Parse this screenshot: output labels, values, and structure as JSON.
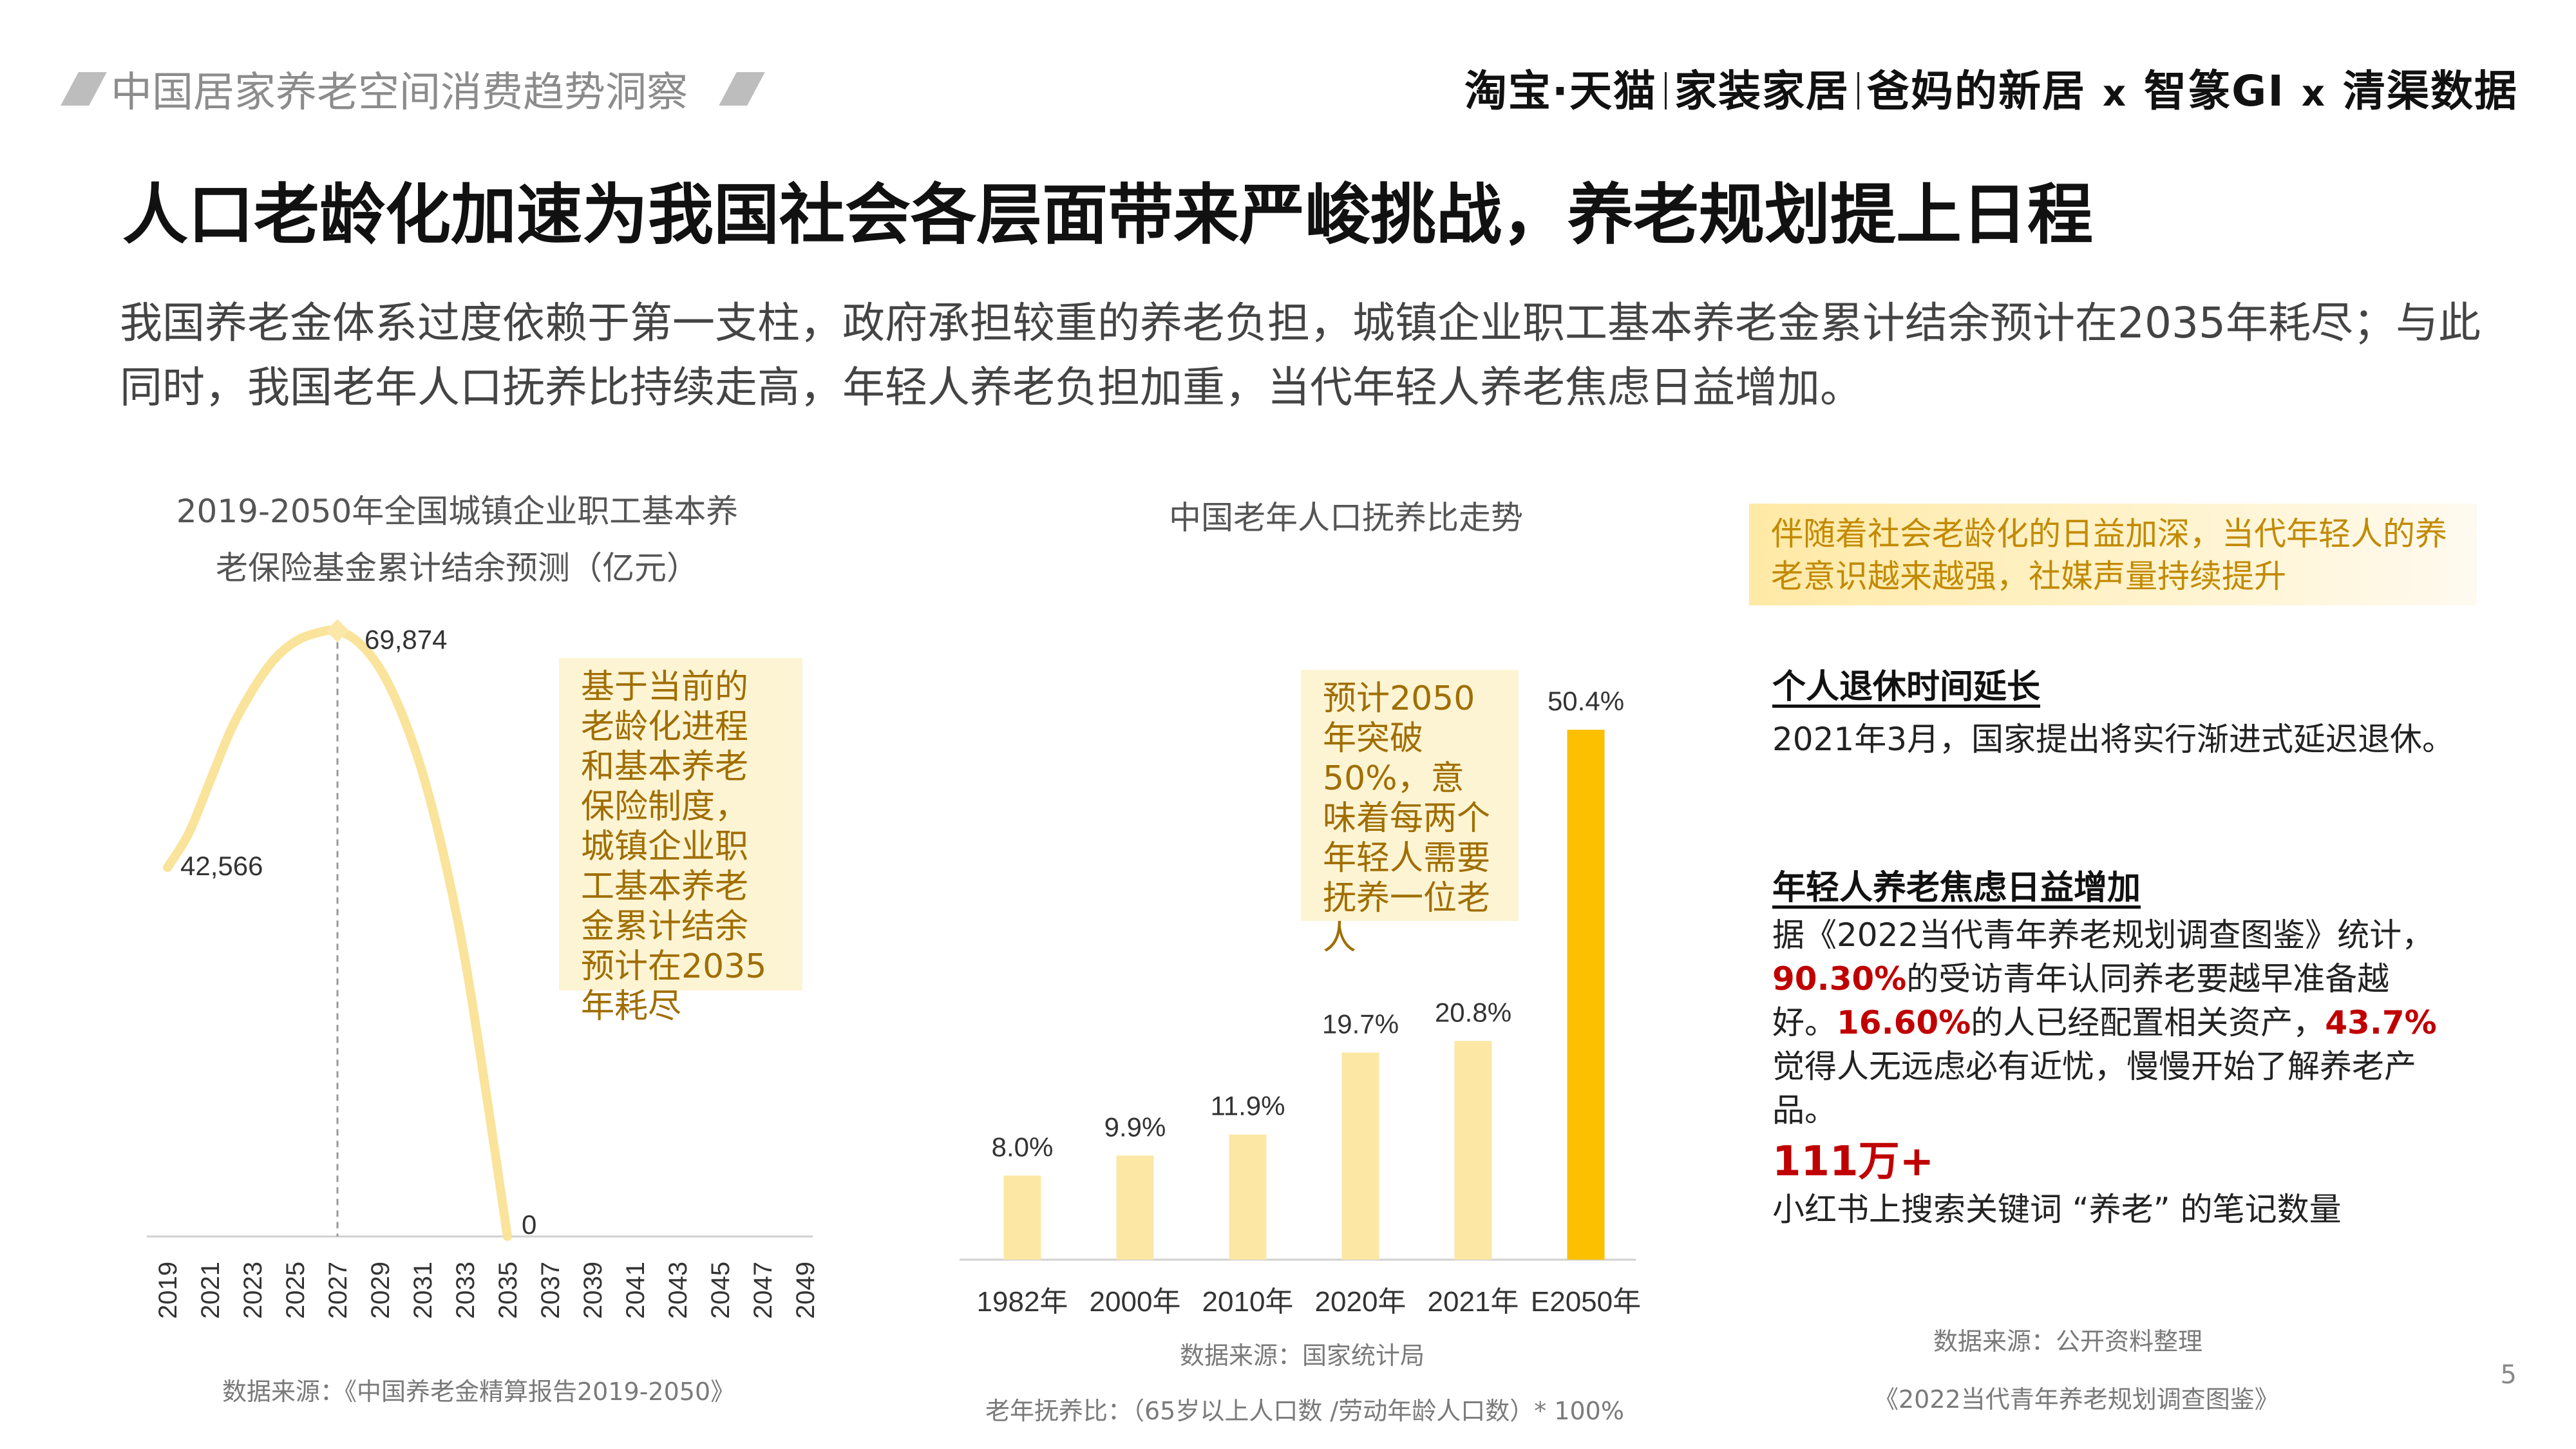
{
  "header": {
    "title": "中国居家养老空间消费趋势洞察",
    "brand_taobao": "淘宝·天猫",
    "brand_home": "家装家居",
    "brand_parents": "爸妈的新居",
    "brand_x": "x",
    "brand_gi": "智篆GI",
    "brand_qingqu": "清渠数据"
  },
  "main_title": "人口老龄化加速为我国社会各层面带来严峻挑战，养老规划提上日程",
  "intro": "我国养老金体系过度依赖于第一支柱，政府承担较重的养老负担，城镇企业职工基本养老金累计结余预计在2035年耗尽；与此同时，我国老年人口抚养比持续走高，年轻人养老负担加重，当代年轻人养老焦虑日益增加。",
  "left_chart": {
    "title_line1": "2019-2050年全国城镇企业职工基本养",
    "title_line2": "老保险基金累计结余预测（亿元）",
    "note": "基于当前的老龄化进程和基本养老保险制度，城镇企业职工基本养老金累计结余预计在2035年耗尽",
    "source": "数据来源：《中国养老金精算报告2019-2050》"
  },
  "mid_chart": {
    "title": "中国老年人口抚养比走势",
    "note": "预计2050年突破50%，意味着每两个年轻人需要抚养一位老人",
    "source": "数据来源：国家统计局",
    "formula": "老年抚养比：（65岁以上人口数 /劳动年龄人口数）* 100%"
  },
  "chart_data": [
    {
      "type": "line",
      "title": "2019-2050年全国城镇企业职工基本养老保险基金累计结余预测（亿元）",
      "x": [
        2019,
        2021,
        2023,
        2025,
        2027,
        2029,
        2031,
        2033,
        2035,
        2037,
        2039,
        2041,
        2043,
        2045,
        2047,
        2049
      ],
      "x_ticks": [
        "2019",
        "2021",
        "2023",
        "2025",
        "2027",
        "2029",
        "2031",
        "2033",
        "2035",
        "2037",
        "2039",
        "2041",
        "2043",
        "2045",
        "2047",
        "2049"
      ],
      "curve": [
        [
          2019,
          42566
        ],
        [
          2020,
          46500
        ],
        [
          2021,
          52500
        ],
        [
          2022,
          58500
        ],
        [
          2023,
          63000
        ],
        [
          2024,
          66500
        ],
        [
          2025,
          68600
        ],
        [
          2026,
          69600
        ],
        [
          2027,
          69874
        ],
        [
          2028,
          68500
        ],
        [
          2029,
          65500
        ],
        [
          2030,
          60500
        ],
        [
          2031,
          53500
        ],
        [
          2032,
          44000
        ],
        [
          2033,
          32000
        ],
        [
          2034,
          16500
        ],
        [
          2035,
          0
        ]
      ],
      "labels": [
        {
          "x": 2019,
          "y": 42566,
          "text": "42,566"
        },
        {
          "x": 2027,
          "y": 69874,
          "text": "69,874"
        },
        {
          "x": 2035,
          "y": 0,
          "text": "0"
        }
      ],
      "ylim": [
        0,
        78000
      ],
      "grid": false,
      "color": "#fae39a"
    },
    {
      "type": "bar",
      "title": "中国老年人口抚养比走势",
      "categories": [
        "1982年",
        "2000年",
        "2010年",
        "2020年",
        "2021年",
        "E2050年"
      ],
      "values": [
        8.0,
        9.9,
        11.9,
        19.7,
        20.8,
        50.4
      ],
      "value_labels": [
        "8.0%",
        "9.9%",
        "11.9%",
        "19.7%",
        "20.8%",
        "50.4%"
      ],
      "ylim": [
        0,
        55
      ],
      "colors": [
        "#fce7a5",
        "#fce7a5",
        "#fce7a5",
        "#fce7a5",
        "#fce7a5",
        "#fcc000"
      ]
    }
  ],
  "right_panel": {
    "callout": "伴随着社会老龄化的日益加深，当代年轻人的养老意识越来越强，社媒声量持续提升",
    "sec1_heading": "个人退休时间延长",
    "sec1_text": "2021年3月，国家提出将实行渐进式延迟退休。",
    "sec2_heading": "年轻人养老焦虑日益增加",
    "sec2_line1": "据《2022当代青年养老规划调查图鉴》统计，",
    "sec2_pct1": "90.30%",
    "sec2_line2": "的受访青年认同养老要越早准备越好。",
    "sec2_pct2": "16.60%",
    "sec2_line3": "的人已经配置相关资产，",
    "sec2_pct3": "43.7%",
    "sec2_line4": "觉得人无远虑必有近忧，慢慢开始了解养老产品。",
    "stat_value": "111万+",
    "stat_caption": "小红书上搜索关键词 “养老” 的笔记数量",
    "source1": "数据来源：公开资料整理",
    "source2": "《2022当代青年养老规划调查图鉴》"
  },
  "page_number": "5",
  "colors": {
    "accent_red": "#c00000",
    "bar_light": "#fce7a5",
    "bar_dark": "#fcc000",
    "line": "#fae39a",
    "note_bg": "#fdf4d3"
  }
}
